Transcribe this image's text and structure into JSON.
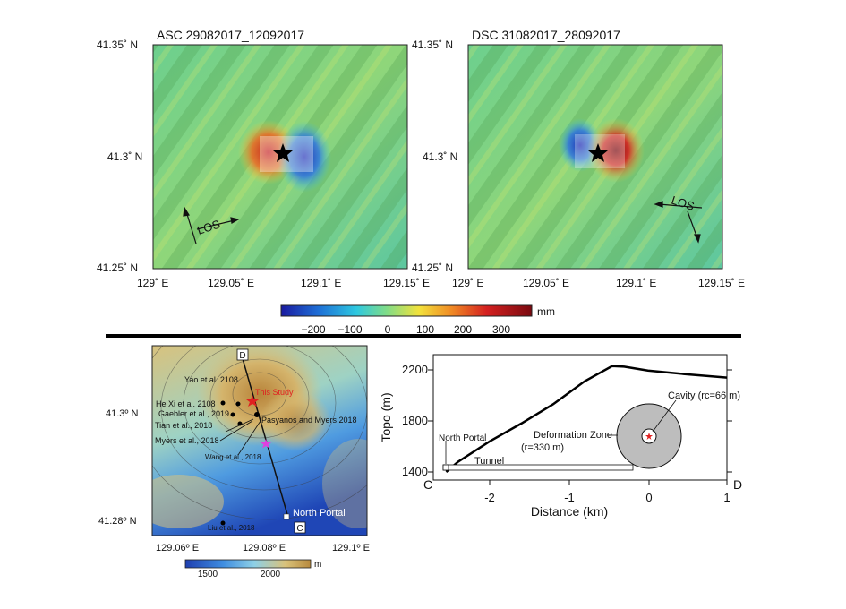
{
  "asc_panel": {
    "title": "ASC 29082017_12092017",
    "lat_labels": [
      "41.35˚ N",
      "41.3˚ N",
      "41.25˚ N"
    ],
    "lon_labels": [
      "129˚ E",
      "129.05˚ E",
      "129.1˚ E",
      "129.15˚ E"
    ],
    "los_label": "LOS"
  },
  "dsc_panel": {
    "title": "DSC 31082017_28092017",
    "lat_labels": [
      "41.35˚ N",
      "41.3˚ N",
      "41.25˚ N"
    ],
    "lon_labels": [
      "129˚ E",
      "129.05˚ E",
      "129.1˚ E",
      "129.15˚ E"
    ],
    "los_label": "LOS"
  },
  "colorbar": {
    "unit": "mm",
    "ticks": [
      "−200",
      "−100",
      "0",
      "100",
      "200",
      "300"
    ],
    "colors": [
      "#1a1aa0",
      "#1e6fd6",
      "#2ec8e0",
      "#7fdc88",
      "#f2e23c",
      "#f08a24",
      "#d42020",
      "#7a0a10"
    ]
  },
  "topo_map": {
    "labels": {
      "yao": "Yao et al. 2108",
      "this_study": "This Study",
      "hexi": "He Xi et al. 2108",
      "gaebler": "Gaebler et al., 2019",
      "tian": "Tian et al., 2018",
      "myers": "Myers et al., 2018",
      "pasyanos": "Pasyanos and Myers 2018",
      "wang": "Wang et al., 2018",
      "liu": "Liu et al., 2018",
      "north_portal": "North Portal",
      "point_d": "D",
      "point_c": "C"
    },
    "lat_labels": [
      "41.3º N",
      "41.28º N"
    ],
    "lon_labels": [
      "129.06º E",
      "129.08º E",
      "129.1º E"
    ],
    "colorbar": {
      "ticks": [
        "1500",
        "2000"
      ],
      "unit": "m",
      "colors": [
        "#1f3fb0",
        "#3f8de0",
        "#8ed0e6",
        "#d9c27a",
        "#b88a3e"
      ]
    }
  },
  "profile": {
    "y_label": "Topo (m)",
    "x_label": "Distance (km)",
    "y_ticks": [
      "2200",
      "1800",
      "1400"
    ],
    "x_ticks": [
      "-2",
      "-1",
      "0",
      "1"
    ],
    "left_end": "C",
    "right_end": "D",
    "north_portal": "North Portal",
    "tunnel": "Tunnel",
    "deformation_zone": "Deformation Zone",
    "deformation_radius": "(r=330 m)",
    "cavity": "Cavity (rc=66 m)",
    "topo_profile": {
      "x": [
        -2.55,
        -2.4,
        -2.0,
        -1.6,
        -1.2,
        -0.8,
        -0.45,
        -0.3,
        0.0,
        0.5,
        1.0
      ],
      "y": [
        1400,
        1480,
        1640,
        1780,
        1930,
        2110,
        2230,
        2225,
        2195,
        2165,
        2140
      ]
    },
    "xlim": [
      -2.75,
      1.0
    ],
    "ylim": [
      1340,
      2300
    ]
  }
}
